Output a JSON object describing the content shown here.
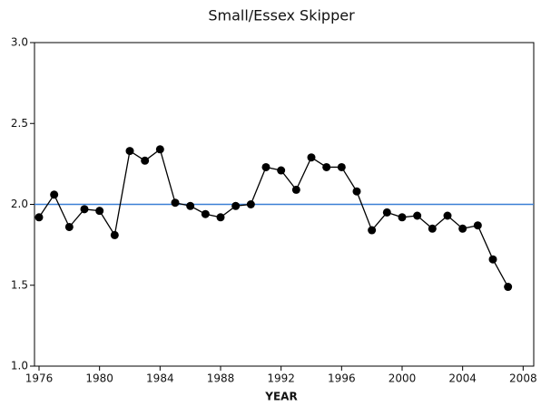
{
  "chart_data": {
    "type": "line",
    "title": "Small/Essex Skipper",
    "x_label": "YEAR",
    "x": [
      1976,
      1977,
      1978,
      1979,
      1980,
      1981,
      1982,
      1983,
      1984,
      1985,
      1986,
      1987,
      1988,
      1989,
      1990,
      1991,
      1992,
      1993,
      1994,
      1995,
      1996,
      1997,
      1998,
      1999,
      2000,
      2001,
      2002,
      2003,
      2004,
      2005,
      2006,
      2007
    ],
    "series": [
      {
        "color": "#000000",
        "values": [
          1.92,
          2.06,
          1.86,
          1.97,
          1.96,
          1.81,
          2.33,
          2.27,
          2.34,
          2.01,
          1.99,
          1.94,
          1.92,
          1.99,
          2.0,
          2.23,
          2.21,
          2.09,
          2.29,
          2.23,
          2.23,
          2.08,
          1.84,
          1.95,
          1.92,
          1.93,
          1.85,
          1.93,
          1.85,
          1.87,
          1.66,
          1.49
        ]
      }
    ],
    "xlim": [
      1975.7,
      2008.7
    ],
    "xticks": [
      1976,
      1980,
      1984,
      1988,
      1992,
      1996,
      2000,
      2004,
      2008
    ],
    "ylim": [
      1,
      3
    ],
    "yticks": [
      {
        "value": 1,
        "label": "1.0"
      },
      {
        "value": 1.5,
        "label": "1.5"
      },
      {
        "value": 2,
        "label": "2.0"
      },
      {
        "value": 2.5,
        "label": "2.5"
      },
      {
        "value": 3,
        "label": "3.0"
      }
    ],
    "reference_line": {
      "value": 2,
      "color": "#3a7fd5"
    }
  }
}
